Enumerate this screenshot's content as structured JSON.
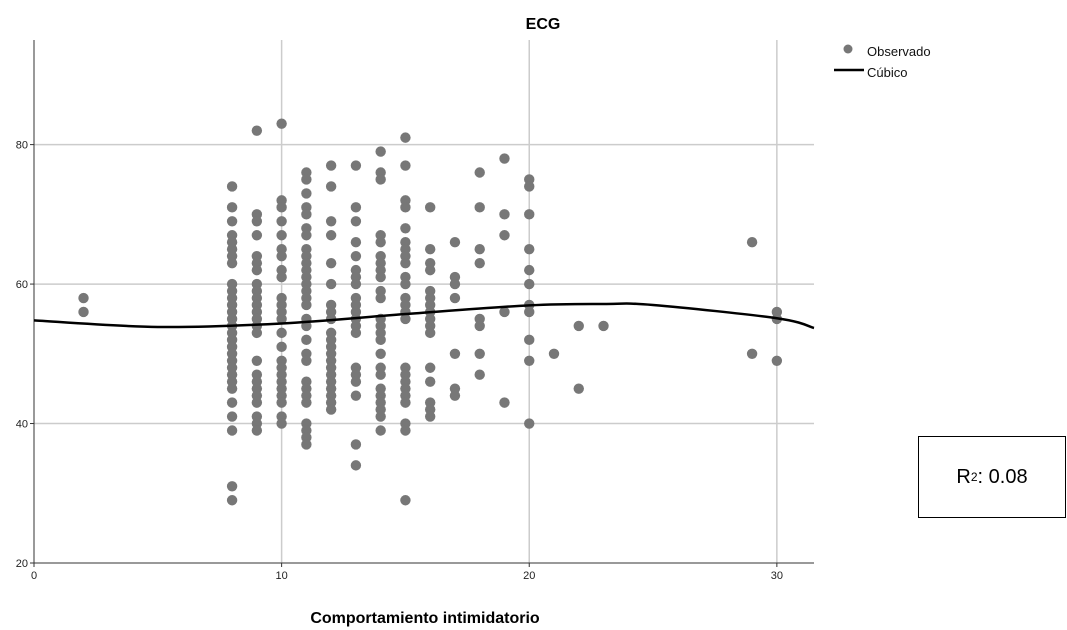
{
  "chart_data": {
    "type": "scatter",
    "title": "ECG",
    "xlabel": "Comportamiento intimidatorio",
    "ylabel": "",
    "xlim": [
      0,
      31.5
    ],
    "ylim": [
      20,
      95
    ],
    "x_ticks": [
      0,
      10,
      20,
      30
    ],
    "y_ticks": [
      20,
      40,
      60,
      80
    ],
    "grid": true,
    "legend": {
      "placement": "top-right",
      "entries": [
        "Observado",
        "Cúbico"
      ]
    },
    "colors": {
      "points": "#777777",
      "curve": "#000000"
    },
    "series": [
      {
        "name": "Observado",
        "points": [
          [
            2,
            58
          ],
          [
            2,
            56
          ],
          [
            8,
            74
          ],
          [
            8,
            71
          ],
          [
            8,
            69
          ],
          [
            8,
            67
          ],
          [
            8,
            66
          ],
          [
            8,
            65
          ],
          [
            8,
            64
          ],
          [
            8,
            63
          ],
          [
            8,
            60
          ],
          [
            8,
            59
          ],
          [
            8,
            58
          ],
          [
            8,
            57
          ],
          [
            8,
            56
          ],
          [
            8,
            55
          ],
          [
            8,
            54
          ],
          [
            8,
            53
          ],
          [
            8,
            52
          ],
          [
            8,
            51
          ],
          [
            8,
            50
          ],
          [
            8,
            49
          ],
          [
            8,
            48
          ],
          [
            8,
            47
          ],
          [
            8,
            46
          ],
          [
            8,
            45
          ],
          [
            8,
            43
          ],
          [
            8,
            41
          ],
          [
            8,
            39
          ],
          [
            8,
            31
          ],
          [
            8,
            29
          ],
          [
            9,
            82
          ],
          [
            9,
            70
          ],
          [
            9,
            69
          ],
          [
            9,
            67
          ],
          [
            9,
            64
          ],
          [
            9,
            63
          ],
          [
            9,
            62
          ],
          [
            9,
            60
          ],
          [
            9,
            59
          ],
          [
            9,
            58
          ],
          [
            9,
            57
          ],
          [
            9,
            56
          ],
          [
            9,
            55
          ],
          [
            9,
            54
          ],
          [
            9,
            53
          ],
          [
            9,
            49
          ],
          [
            9,
            47
          ],
          [
            9,
            46
          ],
          [
            9,
            45
          ],
          [
            9,
            44
          ],
          [
            9,
            43
          ],
          [
            9,
            41
          ],
          [
            9,
            40
          ],
          [
            9,
            39
          ],
          [
            10,
            83
          ],
          [
            10,
            72
          ],
          [
            10,
            71
          ],
          [
            10,
            69
          ],
          [
            10,
            67
          ],
          [
            10,
            65
          ],
          [
            10,
            64
          ],
          [
            10,
            62
          ],
          [
            10,
            61
          ],
          [
            10,
            58
          ],
          [
            10,
            57
          ],
          [
            10,
            56
          ],
          [
            10,
            55
          ],
          [
            10,
            53
          ],
          [
            10,
            51
          ],
          [
            10,
            49
          ],
          [
            10,
            48
          ],
          [
            10,
            47
          ],
          [
            10,
            46
          ],
          [
            10,
            45
          ],
          [
            10,
            44
          ],
          [
            10,
            43
          ],
          [
            10,
            41
          ],
          [
            10,
            40
          ],
          [
            11,
            76
          ],
          [
            11,
            75
          ],
          [
            11,
            73
          ],
          [
            11,
            71
          ],
          [
            11,
            70
          ],
          [
            11,
            68
          ],
          [
            11,
            67
          ],
          [
            11,
            65
          ],
          [
            11,
            64
          ],
          [
            11,
            63
          ],
          [
            11,
            62
          ],
          [
            11,
            61
          ],
          [
            11,
            60
          ],
          [
            11,
            59
          ],
          [
            11,
            58
          ],
          [
            11,
            57
          ],
          [
            11,
            55
          ],
          [
            11,
            54
          ],
          [
            11,
            52
          ],
          [
            11,
            50
          ],
          [
            11,
            49
          ],
          [
            11,
            46
          ],
          [
            11,
            45
          ],
          [
            11,
            44
          ],
          [
            11,
            43
          ],
          [
            11,
            40
          ],
          [
            11,
            39
          ],
          [
            11,
            38
          ],
          [
            11,
            37
          ],
          [
            12,
            77
          ],
          [
            12,
            74
          ],
          [
            12,
            69
          ],
          [
            12,
            67
          ],
          [
            12,
            63
          ],
          [
            12,
            60
          ],
          [
            12,
            57
          ],
          [
            12,
            56
          ],
          [
            12,
            55
          ],
          [
            12,
            53
          ],
          [
            12,
            52
          ],
          [
            12,
            51
          ],
          [
            12,
            50
          ],
          [
            12,
            49
          ],
          [
            12,
            48
          ],
          [
            12,
            47
          ],
          [
            12,
            46
          ],
          [
            12,
            45
          ],
          [
            12,
            44
          ],
          [
            12,
            43
          ],
          [
            12,
            42
          ],
          [
            13,
            77
          ],
          [
            13,
            71
          ],
          [
            13,
            69
          ],
          [
            13,
            66
          ],
          [
            13,
            64
          ],
          [
            13,
            62
          ],
          [
            13,
            61
          ],
          [
            13,
            60
          ],
          [
            13,
            58
          ],
          [
            13,
            57
          ],
          [
            13,
            56
          ],
          [
            13,
            55
          ],
          [
            13,
            54
          ],
          [
            13,
            53
          ],
          [
            13,
            48
          ],
          [
            13,
            47
          ],
          [
            13,
            46
          ],
          [
            13,
            44
          ],
          [
            13,
            37
          ],
          [
            13,
            34
          ],
          [
            14,
            79
          ],
          [
            14,
            76
          ],
          [
            14,
            75
          ],
          [
            14,
            67
          ],
          [
            14,
            66
          ],
          [
            14,
            64
          ],
          [
            14,
            63
          ],
          [
            14,
            62
          ],
          [
            14,
            61
          ],
          [
            14,
            59
          ],
          [
            14,
            58
          ],
          [
            14,
            55
          ],
          [
            14,
            54
          ],
          [
            14,
            53
          ],
          [
            14,
            52
          ],
          [
            14,
            50
          ],
          [
            14,
            48
          ],
          [
            14,
            47
          ],
          [
            14,
            45
          ],
          [
            14,
            44
          ],
          [
            14,
            43
          ],
          [
            14,
            42
          ],
          [
            14,
            41
          ],
          [
            14,
            39
          ],
          [
            15,
            81
          ],
          [
            15,
            77
          ],
          [
            15,
            72
          ],
          [
            15,
            71
          ],
          [
            15,
            68
          ],
          [
            15,
            66
          ],
          [
            15,
            65
          ],
          [
            15,
            64
          ],
          [
            15,
            63
          ],
          [
            15,
            61
          ],
          [
            15,
            60
          ],
          [
            15,
            58
          ],
          [
            15,
            57
          ],
          [
            15,
            56
          ],
          [
            15,
            55
          ],
          [
            15,
            48
          ],
          [
            15,
            47
          ],
          [
            15,
            46
          ],
          [
            15,
            45
          ],
          [
            15,
            44
          ],
          [
            15,
            43
          ],
          [
            15,
            40
          ],
          [
            15,
            39
          ],
          [
            15,
            29
          ],
          [
            16,
            71
          ],
          [
            16,
            65
          ],
          [
            16,
            63
          ],
          [
            16,
            62
          ],
          [
            16,
            59
          ],
          [
            16,
            58
          ],
          [
            16,
            57
          ],
          [
            16,
            56
          ],
          [
            16,
            55
          ],
          [
            16,
            54
          ],
          [
            16,
            53
          ],
          [
            16,
            48
          ],
          [
            16,
            46
          ],
          [
            16,
            43
          ],
          [
            16,
            42
          ],
          [
            16,
            41
          ],
          [
            17,
            66
          ],
          [
            17,
            61
          ],
          [
            17,
            60
          ],
          [
            17,
            58
          ],
          [
            17,
            50
          ],
          [
            17,
            45
          ],
          [
            17,
            44
          ],
          [
            18,
            76
          ],
          [
            18,
            71
          ],
          [
            18,
            65
          ],
          [
            18,
            63
          ],
          [
            18,
            55
          ],
          [
            18,
            54
          ],
          [
            18,
            50
          ],
          [
            18,
            47
          ],
          [
            19,
            78
          ],
          [
            19,
            70
          ],
          [
            19,
            67
          ],
          [
            19,
            56
          ],
          [
            19,
            43
          ],
          [
            20,
            75
          ],
          [
            20,
            74
          ],
          [
            20,
            70
          ],
          [
            20,
            65
          ],
          [
            20,
            62
          ],
          [
            20,
            60
          ],
          [
            20,
            57
          ],
          [
            20,
            56
          ],
          [
            20,
            52
          ],
          [
            20,
            49
          ],
          [
            20,
            40
          ],
          [
            21,
            50
          ],
          [
            22,
            54
          ],
          [
            22,
            45
          ],
          [
            23,
            54
          ],
          [
            29,
            66
          ],
          [
            29,
            50
          ],
          [
            30,
            56
          ],
          [
            30,
            55
          ],
          [
            30,
            49
          ]
        ]
      },
      {
        "name": "Cúbico",
        "curve_samples": [
          [
            0,
            54.8
          ],
          [
            5,
            53.85
          ],
          [
            10,
            54.35
          ],
          [
            15,
            55.7
          ],
          [
            20,
            56.95
          ],
          [
            23,
            57.15
          ],
          [
            25,
            57.0
          ],
          [
            30,
            55.1
          ],
          [
            31.5,
            53.7
          ]
        ]
      }
    ],
    "annotation": {
      "label": "R",
      "superscript": "2",
      "value": ": 0.08"
    }
  }
}
